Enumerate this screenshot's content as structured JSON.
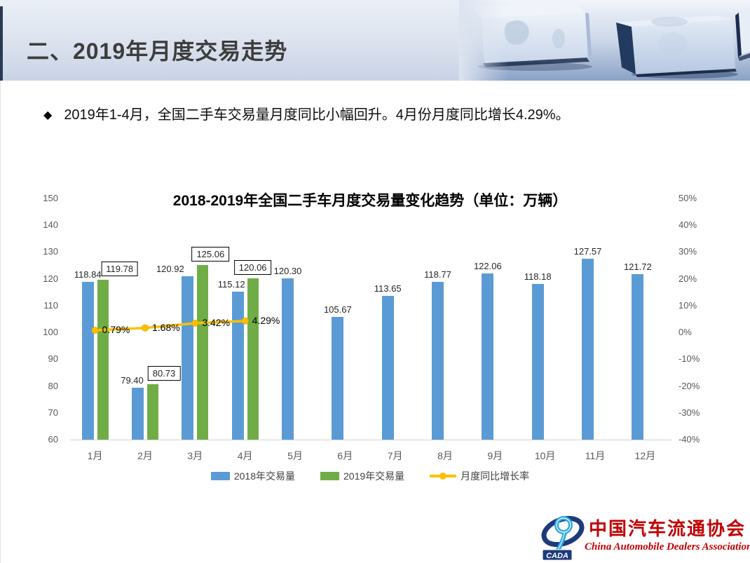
{
  "header": {
    "title": "二、2019年月度交易走势"
  },
  "bullet": {
    "marker": "◆",
    "text": "2019年1-4月，全国二手车交易量月度同比小幅回升。4月份月度同比增长4.29%。"
  },
  "chart_data": {
    "type": "bar",
    "title": "2018-2019年全国二手车月度交易量变化趋势（单位：万辆）",
    "categories": [
      "1月",
      "2月",
      "3月",
      "4月",
      "5月",
      "6月",
      "7月",
      "8月",
      "9月",
      "10月",
      "11月",
      "12月"
    ],
    "series": [
      {
        "name": "2018年交易量",
        "type": "bar",
        "color": "#5b9bd5",
        "values": [
          118.84,
          79.4,
          120.92,
          115.12,
          120.3,
          105.67,
          113.65,
          118.77,
          122.06,
          118.18,
          127.57,
          121.72
        ],
        "labels": [
          "118.84",
          "79.40",
          "120.92",
          "115.12",
          "120.30",
          "105.67",
          "113.65",
          "118.77",
          "122.06",
          "118.18",
          "127.57",
          "121.72"
        ],
        "label_dx": [
          0,
          -8,
          -25,
          -9,
          0,
          0,
          0,
          0,
          0,
          0,
          0,
          0
        ]
      },
      {
        "name": "2019年交易量",
        "type": "bar",
        "color": "#70ad47",
        "values": [
          119.78,
          80.73,
          125.06,
          120.06
        ],
        "labels": [
          "119.78",
          "80.73",
          "125.06",
          "120.06"
        ],
        "boxed_labels": true,
        "label_dx": [
          24,
          16,
          11,
          0
        ]
      },
      {
        "name": "月度同比增长率",
        "type": "line",
        "color": "#ffc000",
        "values_pct": [
          0.79,
          1.68,
          3.42,
          4.29
        ],
        "labels": [
          "0.79%",
          "1.68%",
          "3.42%",
          "4.29%"
        ]
      }
    ],
    "left_axis": {
      "min": 60,
      "max": 150,
      "step": 10,
      "ticks": [
        "150",
        "140",
        "130",
        "120",
        "110",
        "100",
        "90",
        "80",
        "70",
        "60"
      ]
    },
    "right_axis": {
      "min": -40,
      "max": 50,
      "step": 10,
      "ticks": [
        "50%",
        "40%",
        "30%",
        "20%",
        "10%",
        "0%",
        "-10%",
        "-20%",
        "-30%",
        "-40%"
      ]
    },
    "grid": false,
    "legend_position": "bottom"
  },
  "footer_logo": {
    "cada": "CADA",
    "name_cn": "中国汽车流通协会",
    "name_en": "China Automobile Dealers Association",
    "red": "#c00000",
    "navy": "#1d3a7a",
    "lightblue": "#2aa8df"
  }
}
